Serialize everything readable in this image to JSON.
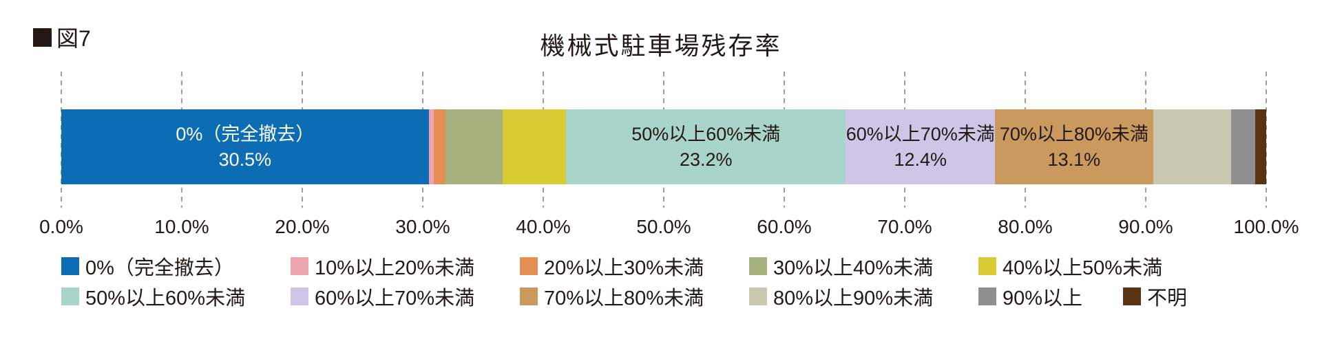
{
  "figure": {
    "marker": "■",
    "label": "図7"
  },
  "title": "機械式駐車場残存率",
  "colors": {
    "text": "#231815",
    "grid": "#9e9e9e",
    "background": "#ffffff"
  },
  "chart_data": {
    "type": "bar",
    "orientation": "horizontal-stacked",
    "title": "機械式駐車場残存率",
    "unit": "%",
    "xlim": [
      0,
      100
    ],
    "x_ticks": [
      "0.0%",
      "10.0%",
      "20.0%",
      "30.0%",
      "40.0%",
      "50.0%",
      "60.0%",
      "70.0%",
      "80.0%",
      "90.0%",
      "100.0%"
    ],
    "grid": "dashed-vertical",
    "legend_position": "bottom",
    "segments": [
      {
        "label": "0%（完全撤去）",
        "value": 30.5,
        "value_label": "30.5%",
        "color": "#0c6db4",
        "text_color": "#ffffff",
        "show_label": true
      },
      {
        "label": "10%以上20%未満",
        "value": 0.4,
        "color": "#eca5ae",
        "show_label": false
      },
      {
        "label": "20%以上30%未満",
        "value": 1.0,
        "color": "#e58e55",
        "show_label": false
      },
      {
        "label": "30%以上40%未満",
        "value": 4.7,
        "color": "#a6b37e",
        "show_label": false
      },
      {
        "label": "40%以上50%未満",
        "value": 5.3,
        "color": "#d8cb33",
        "show_label": false
      },
      {
        "label": "50%以上60%未満",
        "value": 23.2,
        "value_label": "23.2%",
        "color": "#a9d4c9",
        "text_color": "#231815",
        "show_label": true
      },
      {
        "label": "60%以上70%未満",
        "value": 12.4,
        "value_label": "12.4%",
        "color": "#cfc6e7",
        "text_color": "#231815",
        "show_label": true
      },
      {
        "label": "70%以上80%未満",
        "value": 13.1,
        "value_label": "13.1%",
        "color": "#c9995d",
        "text_color": "#231815",
        "show_label": true
      },
      {
        "label": "80%以上90%未満",
        "value": 6.5,
        "color": "#cac8b1",
        "show_label": false
      },
      {
        "label": "90%以上",
        "value": 2.0,
        "color": "#8f8f90",
        "show_label": false
      },
      {
        "label": "不明",
        "value": 0.9,
        "color": "#5a3312",
        "show_label": false
      }
    ],
    "legend_rows": [
      [
        0,
        1,
        2,
        3,
        4
      ],
      [
        5,
        6,
        7,
        8,
        9,
        10
      ]
    ]
  }
}
